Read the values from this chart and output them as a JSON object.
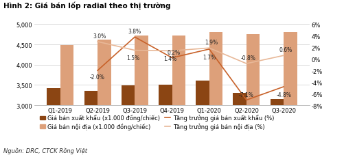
{
  "title": "Hình 2: Giá bán lốp radial theo thị trường",
  "source": "Nguồn: DRC, CTCK Rồng Việt",
  "categories": [
    "Q1-2019",
    "Q2-2019",
    "Q3-2019",
    "Q4-2019",
    "Q1-2020",
    "Q2-2020",
    "Q3-2020"
  ],
  "export_price": [
    3420,
    3350,
    3490,
    3500,
    3600,
    3300,
    3150
  ],
  "domestic_price": [
    4480,
    4620,
    4720,
    4720,
    4800,
    4760,
    4800
  ],
  "export_growth": [
    null,
    -2.0,
    3.8,
    0.2,
    1.7,
    -7.1,
    -4.8
  ],
  "domestic_growth": [
    null,
    3.0,
    1.5,
    1.4,
    1.9,
    -0.8,
    0.6
  ],
  "export_growth_labels": [
    "",
    "-2.0%",
    "3.8%",
    "0.2%",
    "1.7%",
    "-7.1%",
    "-4.8%"
  ],
  "domestic_growth_labels": [
    "",
    "3.0%",
    "1.5%",
    "1.4%",
    "1.9%",
    "-0.8%",
    "0.6%"
  ],
  "bar_color_export": "#8B4513",
  "bar_color_domestic": "#DDA07A",
  "line_color_export": "#C8622A",
  "line_color_domestic": "#E8B898",
  "ylim_left": [
    3000,
    5000
  ],
  "ylim_right": [
    -8,
    6
  ],
  "yticks_left": [
    3000,
    3500,
    4000,
    4500,
    5000
  ],
  "yticks_right": [
    -8,
    -6,
    -4,
    -2,
    0,
    2,
    4,
    6
  ],
  "background_color": "#ffffff",
  "title_fontsize": 7.5,
  "label_fontsize": 6.0,
  "tick_fontsize": 6.0,
  "annotation_fontsize": 5.5,
  "source_fontsize": 6.0
}
